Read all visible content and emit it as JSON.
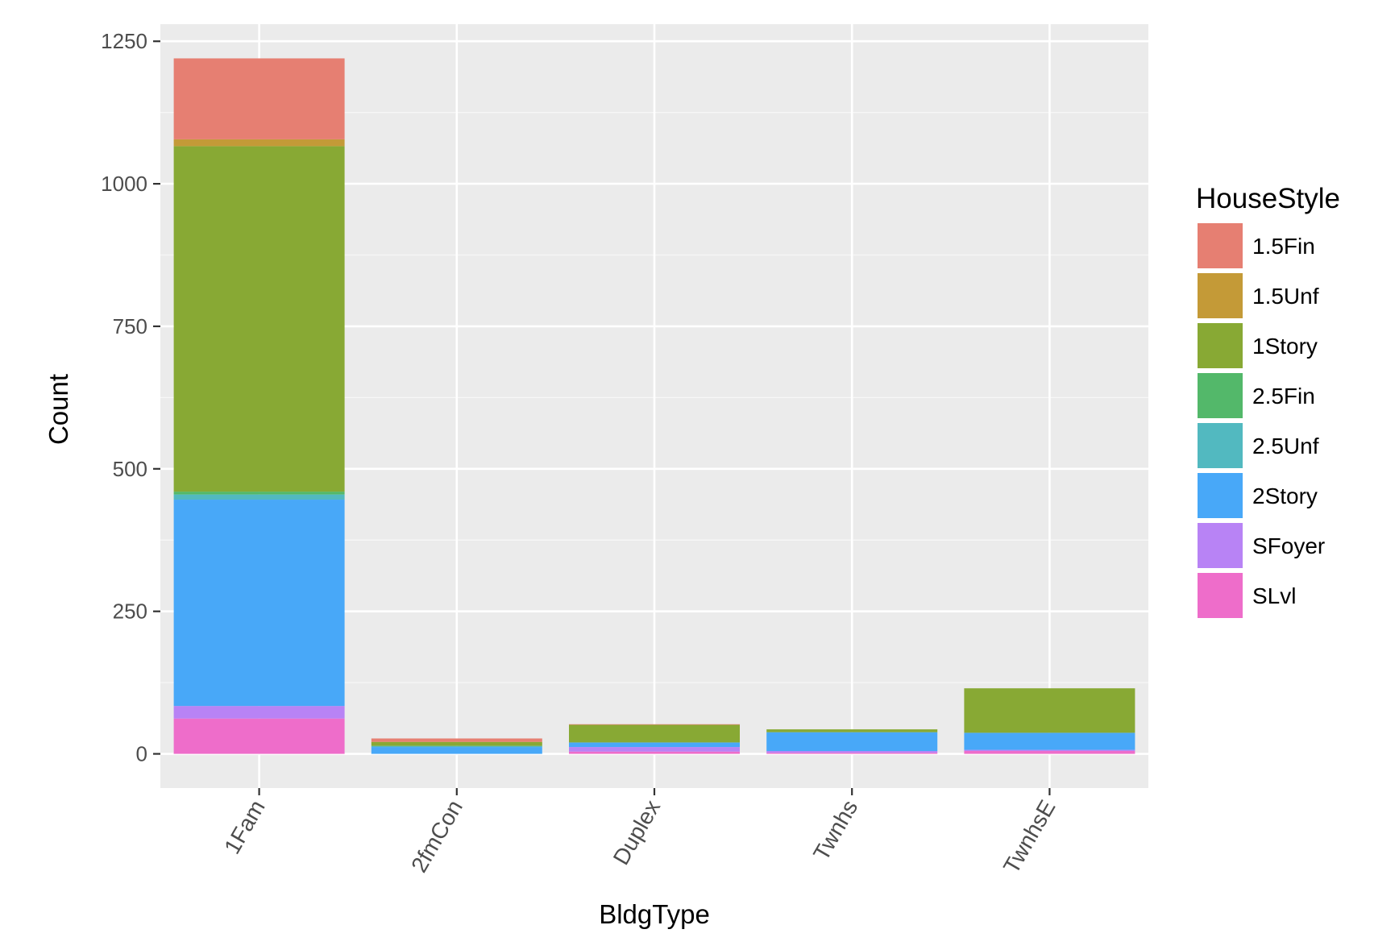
{
  "chart_data": {
    "type": "bar",
    "stacked": true,
    "xlabel": "BldgType",
    "ylabel": "Count",
    "categories": [
      "1Fam",
      "2fmCon",
      "Duplex",
      "Twnhs",
      "TwnhsE"
    ],
    "ylim": [
      -60,
      1280
    ],
    "yticks": [
      0,
      250,
      500,
      750,
      1000,
      1250
    ],
    "x_tick_rotation": -60,
    "grid": true,
    "legend": {
      "title": "HouseStyle",
      "position": "right"
    },
    "series": [
      {
        "name": "1.5Fin",
        "color": "#E67F72",
        "values": [
          142,
          6,
          1,
          0,
          0
        ]
      },
      {
        "name": "1.5Unf",
        "color": "#C49A37",
        "values": [
          12,
          0,
          0,
          0,
          0
        ]
      },
      {
        "name": "1Story",
        "color": "#88A934",
        "values": [
          606,
          7,
          31,
          5,
          78
        ]
      },
      {
        "name": "2.5Fin",
        "color": "#53B86A",
        "values": [
          5,
          0,
          0,
          0,
          0
        ]
      },
      {
        "name": "2.5Unf",
        "color": "#52B9C0",
        "values": [
          9,
          2,
          0,
          0,
          0
        ]
      },
      {
        "name": "2Story",
        "color": "#48A8F8",
        "values": [
          362,
          12,
          8,
          33,
          30
        ]
      },
      {
        "name": "SFoyer",
        "color": "#B883F5",
        "values": [
          22,
          0,
          8,
          3,
          2
        ]
      },
      {
        "name": "SLvl",
        "color": "#EE6DCA",
        "values": [
          62,
          0,
          4,
          2,
          5
        ]
      }
    ]
  }
}
